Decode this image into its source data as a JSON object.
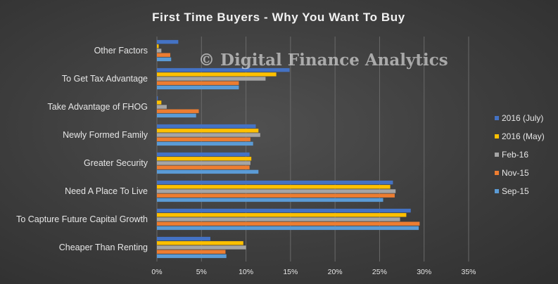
{
  "chart_data": {
    "type": "bar",
    "orientation": "horizontal",
    "title": "First Time Buyers - Why You Want To Buy",
    "watermark": "© Digital Finance Analytics",
    "categories": [
      "Other Factors",
      "To Get Tax Advantage",
      "Take Advantage of FHOG",
      "Newly Formed Family",
      "Greater Security",
      "Need A Place To Live",
      "To Capture Future Capital Growth",
      "Cheaper Than Renting"
    ],
    "series": [
      {
        "name": "2016 (July)",
        "color": "#4472c4",
        "values": [
          0.024,
          0.149,
          0.001,
          0.111,
          0.104,
          0.265,
          0.285,
          0.06
        ]
      },
      {
        "name": "2016 (May)",
        "color": "#ffc000",
        "values": [
          0.002,
          0.134,
          0.005,
          0.114,
          0.106,
          0.262,
          0.28,
          0.097
        ]
      },
      {
        "name": "Feb-16",
        "color": "#a5a5a5",
        "values": [
          0.005,
          0.122,
          0.011,
          0.116,
          0.105,
          0.268,
          0.273,
          0.1
        ]
      },
      {
        "name": "Nov-15",
        "color": "#ed7d31",
        "values": [
          0.015,
          0.092,
          0.047,
          0.105,
          0.104,
          0.267,
          0.295,
          0.077
        ]
      },
      {
        "name": "Sep-15",
        "color": "#5b9bd5",
        "values": [
          0.016,
          0.092,
          0.044,
          0.108,
          0.114,
          0.254,
          0.294,
          0.078
        ]
      }
    ],
    "xlim": [
      0,
      0.35
    ],
    "x_ticks": [
      0,
      0.05,
      0.1,
      0.15,
      0.2,
      0.25,
      0.3,
      0.35
    ],
    "x_tick_labels": [
      "0%",
      "5%",
      "10%",
      "15%",
      "20%",
      "25%",
      "30%",
      "35%"
    ],
    "grid": true,
    "legend_position": "right"
  }
}
